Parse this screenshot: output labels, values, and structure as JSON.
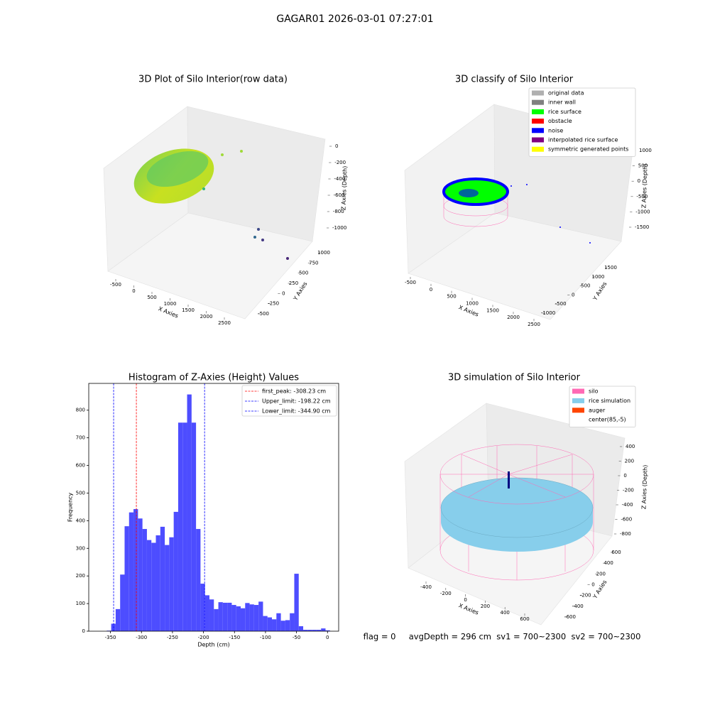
{
  "title": "GAGAR01 2026-03-01 07:27:01",
  "chart_data": [
    {
      "type": "scatter3d",
      "title": "3D Plot of Silo Interior(row data)",
      "xlabel": "X Axies",
      "ylabel": "Y Axies",
      "zlabel": "Z Axies (Depth)",
      "xticks": [
        -500,
        0,
        500,
        1000,
        1500,
        2000,
        2500
      ],
      "yticks": [
        -500,
        -250,
        0,
        250,
        500,
        750,
        1000
      ],
      "zticks": [
        -1000,
        -800,
        -600,
        -400,
        -200,
        0
      ]
    },
    {
      "type": "scatter3d",
      "title": "3D classify of Silo Interior",
      "xlabel": "X Axies",
      "ylabel": "Y Axies",
      "zlabel": "Z Axies (Depth)",
      "xticks": [
        -500,
        0,
        500,
        1000,
        1500,
        2000,
        2500
      ],
      "yticks": [
        -1000,
        -500,
        0,
        500,
        1000,
        1500
      ],
      "zticks": [
        -1500,
        -1000,
        -500,
        0,
        500,
        1000
      ],
      "legend_loc": "upper right",
      "legend": [
        {
          "name": "original data",
          "color": "#b0b0b0"
        },
        {
          "name": "inner wall",
          "color": "#808080"
        },
        {
          "name": "rice surface",
          "color": "#00ff00"
        },
        {
          "name": "obstacle",
          "color": "#ff0000"
        },
        {
          "name": "noise",
          "color": "#0000ff"
        },
        {
          "name": "interpolated rice surface",
          "color": "#800080"
        },
        {
          "name": "symmetric generated points",
          "color": "#ffff00"
        }
      ]
    },
    {
      "type": "histogram",
      "title": "Histogram of Z-Axies (Height) Values",
      "xlabel": "Depth (cm)",
      "ylabel": "Frequency",
      "color": "#4d4dff",
      "bins": [
        -356,
        -348.8,
        -341.6,
        -334.4,
        -327.2,
        -320,
        -312.8,
        -305.6,
        -298.4,
        -291.2,
        -284,
        -276.8,
        -269.6,
        -262.4,
        -255.2,
        -248,
        -240.8,
        -233.6,
        -226.4,
        -219.2,
        -212,
        -204.8,
        -197.6,
        -190.4,
        -183.2,
        -176,
        -168.8,
        -161.6,
        -154.4,
        -147.2,
        -140,
        -132.8,
        -125.6,
        -118.4,
        -111.2,
        -104,
        -96.8,
        -89.6,
        -82.4,
        -75.2,
        -68,
        -60.8,
        -53.6,
        -46.4,
        -39.2,
        -32,
        -24.8,
        -17.6,
        -10.4,
        -3.2,
        4
      ],
      "counts": [
        2,
        27,
        80,
        205,
        380,
        430,
        442,
        408,
        370,
        330,
        320,
        347,
        378,
        312,
        340,
        432,
        755,
        755,
        857,
        755,
        370,
        172,
        130,
        115,
        80,
        105,
        103,
        103,
        95,
        90,
        83,
        102,
        97,
        95,
        107,
        55,
        50,
        43,
        65,
        38,
        40,
        65,
        208,
        18,
        5,
        5,
        5,
        5,
        10,
        3
      ],
      "xlim": [
        -385,
        18
      ],
      "ylim": [
        0,
        897
      ],
      "xticks": [
        -350,
        -300,
        -250,
        -200,
        -150,
        -100,
        -50,
        0
      ],
      "yticks": [
        0,
        100,
        200,
        300,
        400,
        500,
        600,
        700,
        800
      ],
      "legend_loc": "upper right",
      "vlines": [
        {
          "value": -308.23,
          "label": "first_peak: -308.23 cm",
          "color": "#ff0000"
        },
        {
          "value": -198.22,
          "label": "Upper_limit: -198.22 cm",
          "color": "#0000ff"
        },
        {
          "value": -344.9,
          "label": "Lower_limit: -344.90 cm",
          "color": "#0000ff"
        }
      ]
    },
    {
      "type": "surface3d",
      "title": "3D simulation of Silo Interior",
      "xlabel": "X Axies",
      "ylabel": "Y Axies",
      "zlabel": "Z Axies (Depth)",
      "xticks": [
        -400,
        -200,
        0,
        200,
        400,
        600
      ],
      "yticks": [
        -600,
        -400,
        -200,
        0,
        200,
        400,
        600
      ],
      "zticks": [
        -800,
        -600,
        -400,
        -200,
        0,
        200,
        400
      ],
      "legend_loc": "upper right",
      "legend": [
        {
          "name": "silo",
          "color": "#ff69b4"
        },
        {
          "name": "rice simulation",
          "color": "#87ceeb"
        },
        {
          "name": "auger",
          "color": "#ff4500"
        },
        {
          "name": "center(85,-5)",
          "color": "#ffffff"
        }
      ]
    }
  ],
  "status": "flag = 0     avgDepth = 296 cm  sv1 = 700~2300  sv2 = 700~2300"
}
